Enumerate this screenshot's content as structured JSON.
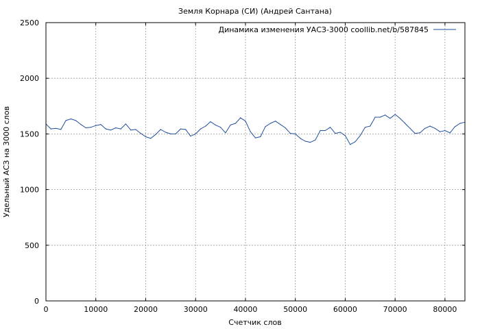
{
  "chart_data": {
    "type": "line",
    "title": "Земля Корнара (СИ) (Андрей Сантана)",
    "xlabel": "Счетчик слов",
    "ylabel": "Удельный АСЗ на 3000 слов",
    "xlim": [
      0,
      84000
    ],
    "ylim": [
      0,
      2500
    ],
    "xticks": [
      0,
      10000,
      20000,
      30000,
      40000,
      50000,
      60000,
      70000,
      80000
    ],
    "yticks": [
      0,
      500,
      1000,
      1500,
      2000,
      2500
    ],
    "grid": true,
    "legend_position": "top-right",
    "series": [
      {
        "name": "Динамика изменения УАСЗ-3000 coollib.net/b/587845",
        "color": "#1f4e9c",
        "points": [
          [
            0,
            1590
          ],
          [
            1000,
            1545
          ],
          [
            2000,
            1550
          ],
          [
            3000,
            1540
          ],
          [
            4000,
            1620
          ],
          [
            5000,
            1635
          ],
          [
            6000,
            1620
          ],
          [
            7000,
            1585
          ],
          [
            8000,
            1555
          ],
          [
            9000,
            1560
          ],
          [
            10000,
            1575
          ],
          [
            11000,
            1585
          ],
          [
            12000,
            1545
          ],
          [
            13000,
            1535
          ],
          [
            14000,
            1555
          ],
          [
            15000,
            1545
          ],
          [
            16000,
            1590
          ],
          [
            17000,
            1535
          ],
          [
            18000,
            1540
          ],
          [
            19000,
            1505
          ],
          [
            20000,
            1475
          ],
          [
            21000,
            1460
          ],
          [
            22000,
            1495
          ],
          [
            23000,
            1540
          ],
          [
            24000,
            1515
          ],
          [
            25000,
            1500
          ],
          [
            26000,
            1500
          ],
          [
            27000,
            1545
          ],
          [
            28000,
            1540
          ],
          [
            29000,
            1480
          ],
          [
            30000,
            1500
          ],
          [
            31000,
            1545
          ],
          [
            32000,
            1570
          ],
          [
            33000,
            1610
          ],
          [
            34000,
            1580
          ],
          [
            35000,
            1560
          ],
          [
            36000,
            1510
          ],
          [
            37000,
            1580
          ],
          [
            38000,
            1595
          ],
          [
            39000,
            1645
          ],
          [
            40000,
            1615
          ],
          [
            41000,
            1520
          ],
          [
            42000,
            1465
          ],
          [
            43000,
            1475
          ],
          [
            44000,
            1565
          ],
          [
            45000,
            1595
          ],
          [
            46000,
            1615
          ],
          [
            47000,
            1585
          ],
          [
            48000,
            1555
          ],
          [
            49000,
            1505
          ],
          [
            50000,
            1500
          ],
          [
            51000,
            1460
          ],
          [
            52000,
            1435
          ],
          [
            53000,
            1425
          ],
          [
            54000,
            1445
          ],
          [
            55000,
            1530
          ],
          [
            56000,
            1530
          ],
          [
            57000,
            1560
          ],
          [
            58000,
            1505
          ],
          [
            59000,
            1515
          ],
          [
            60000,
            1485
          ],
          [
            61000,
            1405
          ],
          [
            62000,
            1430
          ],
          [
            63000,
            1485
          ],
          [
            64000,
            1560
          ],
          [
            65000,
            1570
          ],
          [
            66000,
            1650
          ],
          [
            67000,
            1650
          ],
          [
            68000,
            1670
          ],
          [
            69000,
            1640
          ],
          [
            70000,
            1675
          ],
          [
            71000,
            1640
          ],
          [
            72000,
            1595
          ],
          [
            73000,
            1550
          ],
          [
            74000,
            1505
          ],
          [
            75000,
            1510
          ],
          [
            76000,
            1550
          ],
          [
            77000,
            1570
          ],
          [
            78000,
            1550
          ],
          [
            79000,
            1520
          ],
          [
            80000,
            1530
          ],
          [
            81000,
            1510
          ],
          [
            82000,
            1565
          ],
          [
            83000,
            1595
          ],
          [
            84000,
            1605
          ]
        ]
      }
    ]
  }
}
